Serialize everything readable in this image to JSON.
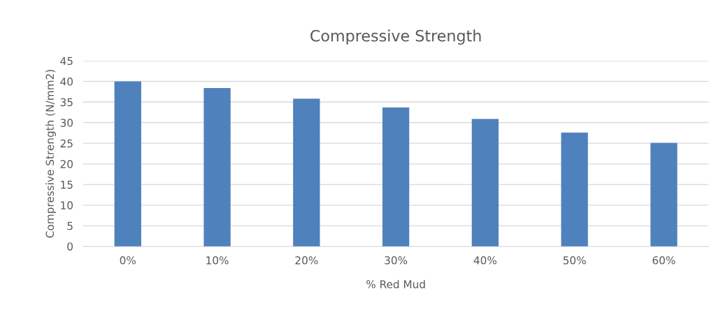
{
  "chart_data": {
    "type": "bar",
    "title": "Compressive Strength",
    "xlabel": "% Red Mud",
    "ylabel": "Compressive Strength (N/mm2)",
    "categories": [
      "0%",
      "10%",
      "20%",
      "30%",
      "40%",
      "50%",
      "60%"
    ],
    "values": [
      40,
      38.4,
      35.8,
      33.7,
      30.9,
      27.6,
      25.1
    ],
    "color": "#4f81bd",
    "ylim": [
      0,
      45
    ],
    "yticks": [
      0,
      5,
      10,
      15,
      20,
      25,
      30,
      35,
      40,
      45
    ],
    "grid": "y",
    "legend": false
  }
}
